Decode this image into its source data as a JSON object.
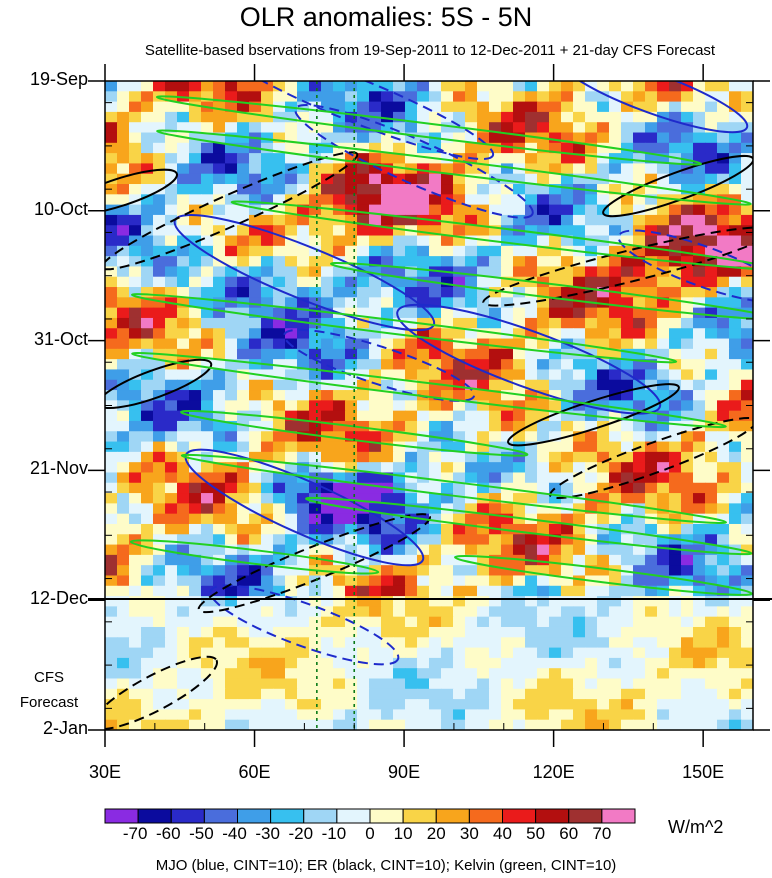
{
  "chart_data": {
    "type": "heatmap",
    "title": "OLR anomalies: 5S - 5N",
    "subtitle": "Satellite-based bservations from 19-Sep-2011 to 12-Dec-2011 + 21-day CFS Forecast",
    "x_ticks": [
      "30E",
      "60E",
      "90E",
      "120E",
      "150E"
    ],
    "x_tick_values": [
      30,
      60,
      90,
      120,
      150
    ],
    "xlim": [
      30,
      160
    ],
    "y_ticks": [
      "19-Sep",
      "10-Oct",
      "31-Oct",
      "21-Nov",
      "12-Dec",
      "2-Jan"
    ],
    "y_tick_days": [
      0,
      21,
      42,
      63,
      84,
      105
    ],
    "forecast_label_line1": "CFS",
    "forecast_label_line2": "Forecast",
    "observation_end": "12-Dec",
    "reference_lines_lon": [
      72.5,
      80
    ],
    "colorbar": {
      "unit": "W/m^2",
      "levels": [
        "-70",
        "-60",
        "-50",
        "-40",
        "-30",
        "-20",
        "-10",
        "0",
        "10",
        "20",
        "30",
        "40",
        "50",
        "60",
        "70"
      ],
      "colors": [
        "#8a2be2",
        "#0b0b9e",
        "#2a2ac8",
        "#4a6ddc",
        "#3f9ee8",
        "#37c0ef",
        "#9fd6f5",
        "#e3f5fd",
        "#fefcc8",
        "#f9d447",
        "#f8a51c",
        "#f56a1d",
        "#ea1b1b",
        "#b30f0f",
        "#9f3030",
        "#f27ac5"
      ]
    },
    "footer": "MJO (blue, CINT=10); ER (black, CINT=10); Kelvin (green, CINT=10)",
    "contour_series": [
      {
        "name": "MJO",
        "color": "#1e2acb"
      },
      {
        "name": "ER",
        "color": "#000000"
      },
      {
        "name": "Kelvin",
        "color": "#22d022"
      }
    ]
  }
}
